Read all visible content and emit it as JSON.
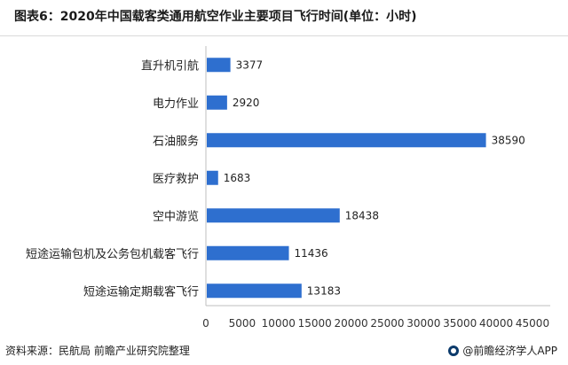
{
  "header": {
    "title": "图表6：2020年中国载客类通用航空作业主要项目飞行时间(单位：小时)"
  },
  "footer": {
    "source": "资料来源：民航局 前瞻产业研究院整理",
    "brand": "@前瞻经济学人APP"
  },
  "chart_data": {
    "type": "bar",
    "orientation": "horizontal",
    "categories": [
      "直升机引航",
      "电力作业",
      "石油服务",
      "医疗救护",
      "空中游览",
      "短途运输包机及公务包机载客飞行",
      "短途运输定期载客飞行"
    ],
    "values": [
      3377,
      2920,
      38590,
      1683,
      18438,
      11436,
      13183
    ],
    "xlim": [
      0,
      45000
    ],
    "xticks": [
      0,
      5000,
      10000,
      15000,
      20000,
      25000,
      30000,
      35000,
      40000,
      45000
    ],
    "grid": false,
    "bar_color": "#2e6fcf"
  }
}
